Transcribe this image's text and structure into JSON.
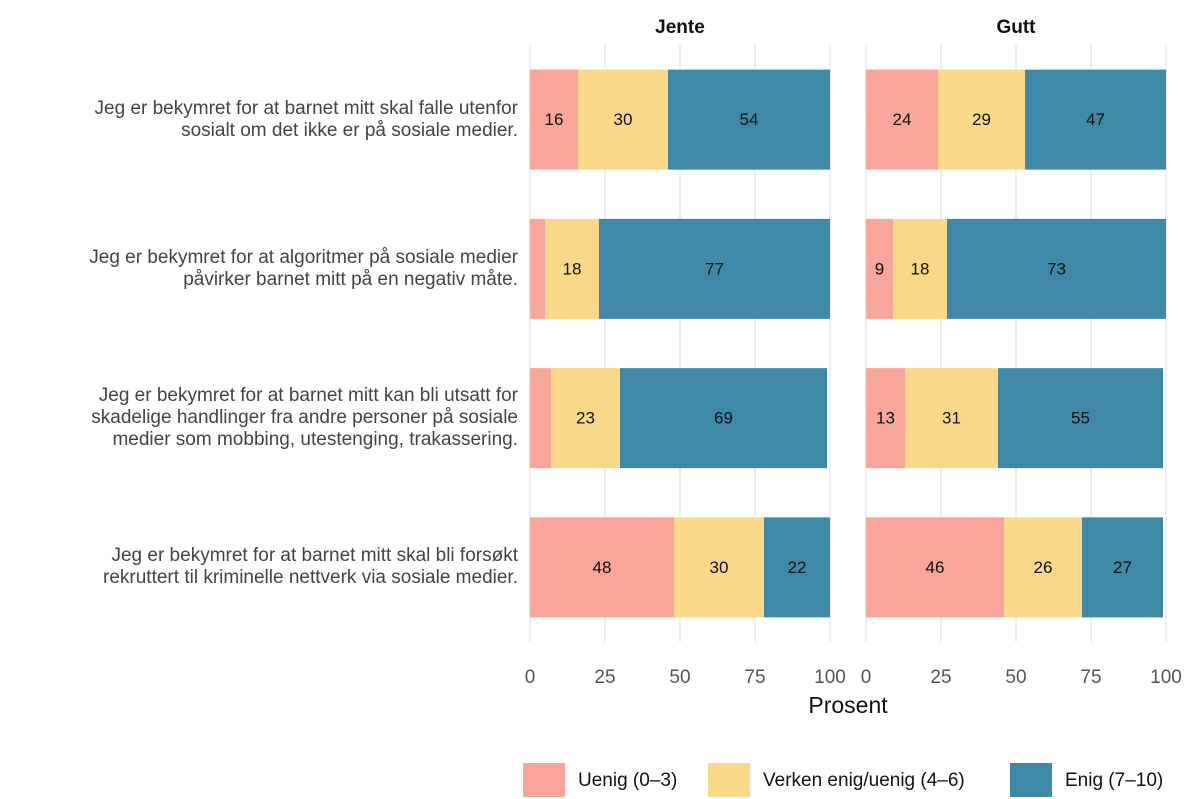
{
  "chart_data": [
    {
      "type": "bar",
      "orientation": "horizontal",
      "stacked": true,
      "title": "Jente",
      "categories": [
        "Jeg er bekymret for at barnet mitt skal falle utenfor\nsosialt om det ikke er på sosiale medier.",
        "Jeg er bekymret for at algoritmer på sosiale medier\npåvirker barnet mitt på en negativ måte.",
        "Jeg er bekymret for at barnet mitt kan bli utsatt for\nskadelige handlinger fra andre personer på sosiale\nmedier som mobbing, utestenging, trakassering.",
        "Jeg er bekymret for at barnet mitt skal bli forsøkt\nrekruttert til kriminelle nettverk via sosiale medier."
      ],
      "series": [
        {
          "name": "Uenig (0–3)",
          "color": "#f8a59b",
          "values": [
            16,
            5,
            7,
            48
          ],
          "value_labels": [
            "16",
            null,
            null,
            "48"
          ]
        },
        {
          "name": "Verken enig/uenig (4–6)",
          "color": "#f8d98a",
          "values": [
            30,
            18,
            23,
            30
          ],
          "value_labels": [
            "30",
            "18",
            "23",
            "30"
          ]
        },
        {
          "name": "Enig (7–10)",
          "color": "#3f88a8",
          "values": [
            54,
            77,
            69,
            22
          ],
          "value_labels": [
            "54",
            "77",
            "69",
            "22"
          ]
        }
      ],
      "xlim": [
        0,
        100
      ],
      "xticks": [
        0,
        25,
        50,
        75,
        100
      ],
      "xlabel": "Prosent",
      "grid": true,
      "legend": "bottom-right"
    },
    {
      "type": "bar",
      "orientation": "horizontal",
      "stacked": true,
      "title": "Gutt",
      "series": [
        {
          "values": [
            24,
            9,
            13,
            46
          ],
          "value_labels": [
            "24",
            "9",
            "13",
            "46"
          ]
        },
        {
          "values": [
            29,
            18,
            31,
            26
          ],
          "value_labels": [
            "29",
            "18",
            "31",
            "26"
          ]
        },
        {
          "values": [
            47,
            73,
            55,
            27
          ],
          "value_labels": [
            "47",
            "73",
            "55",
            "27"
          ]
        }
      ],
      "xlim": [
        0,
        100
      ],
      "xticks": [
        0,
        25,
        50,
        75,
        100
      ],
      "grid": true
    }
  ]
}
